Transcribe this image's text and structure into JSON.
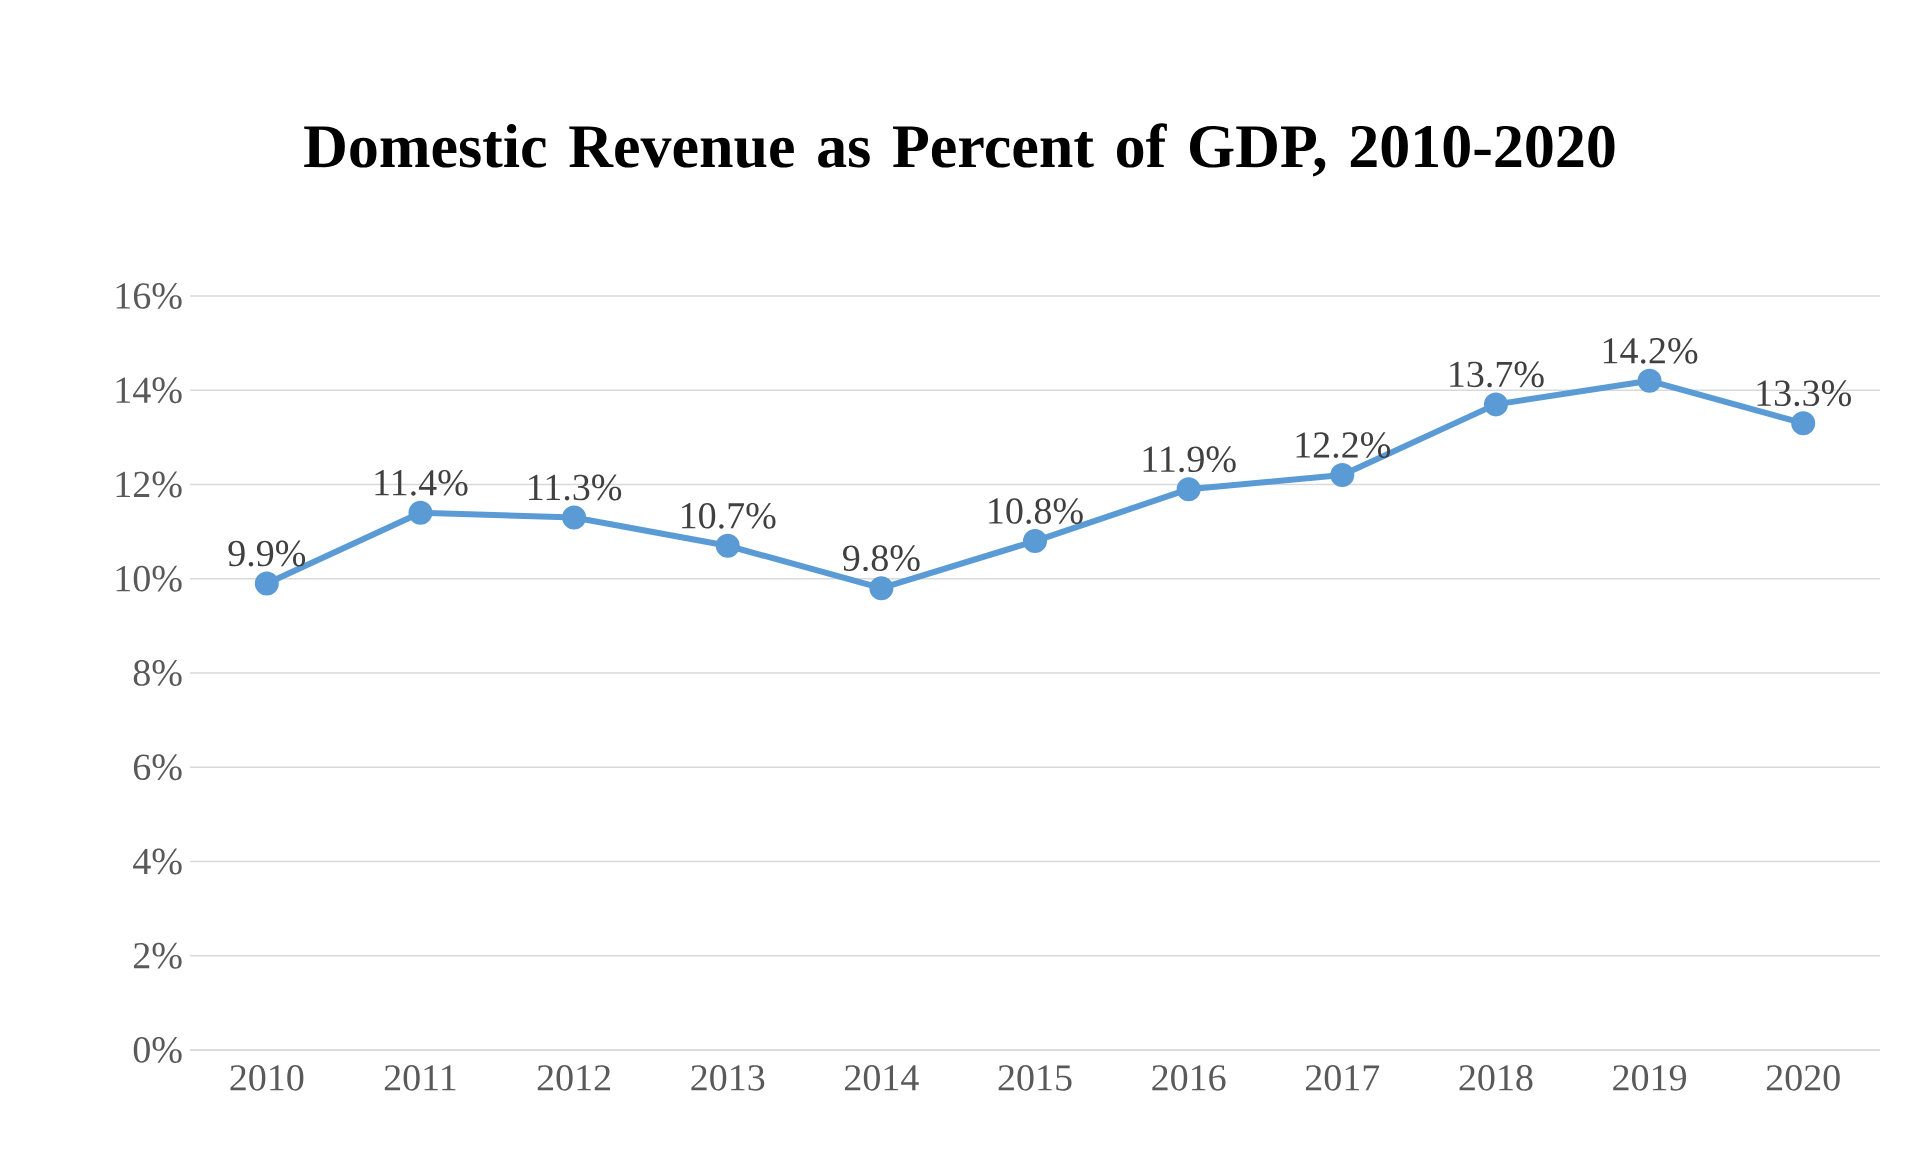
{
  "chart_data": {
    "type": "line",
    "title": "Domestic Revenue as Percent of GDP, 2010-2020",
    "categories": [
      "2010",
      "2011",
      "2012",
      "2013",
      "2014",
      "2015",
      "2016",
      "2017",
      "2018",
      "2019",
      "2020"
    ],
    "series": [
      {
        "color": "#5b9bd5",
        "values": [
          9.9,
          11.4,
          11.3,
          10.7,
          9.8,
          10.8,
          11.9,
          12.2,
          13.7,
          14.2,
          13.3
        ],
        "value_labels": [
          "9.9%",
          "11.4%",
          "11.3%",
          "10.7%",
          "9.8%",
          "10.8%",
          "11.9%",
          "12.2%",
          "13.7%",
          "14.2%",
          "13.3%"
        ]
      }
    ],
    "ylim": [
      0,
      16
    ],
    "yticks": [
      {
        "value": 0,
        "label": "0%"
      },
      {
        "value": 2,
        "label": "2%"
      },
      {
        "value": 4,
        "label": "4%"
      },
      {
        "value": 6,
        "label": "6%"
      },
      {
        "value": 8,
        "label": "8%"
      },
      {
        "value": 10,
        "label": "10%"
      },
      {
        "value": 12,
        "label": "12%"
      },
      {
        "value": 14,
        "label": "14%"
      },
      {
        "value": 16,
        "label": "16%"
      }
    ],
    "grid": "y",
    "marker": "circle",
    "line_style": "solid"
  }
}
